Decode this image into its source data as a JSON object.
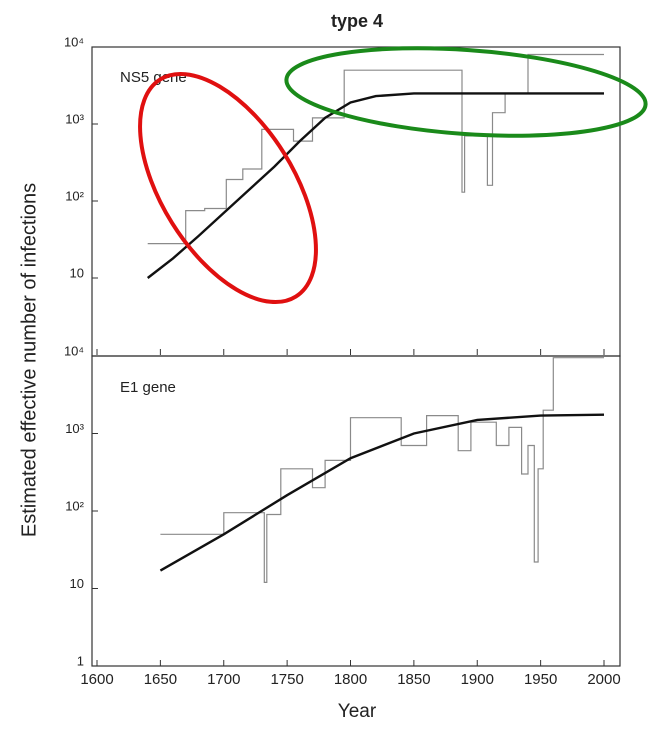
{
  "chart_data": [
    {
      "type": "line",
      "title": "type 4",
      "annotation": "NS5 gene",
      "log_y": true,
      "xlim": [
        1600,
        2000
      ],
      "xticks": [
        1600,
        1650,
        1700,
        1750,
        1800,
        1850,
        1900,
        1950,
        2000
      ],
      "ylim": [
        1,
        10000
      ],
      "yticks": [
        {
          "value": 10000,
          "label": "10⁴"
        },
        {
          "value": 1000,
          "label": "10³"
        },
        {
          "value": 100,
          "label": "10²"
        },
        10
      ],
      "series": [
        {
          "color": "#8a8a8a",
          "x": [
            1640,
            1670,
            1670,
            1685,
            1685,
            1702,
            1702,
            1715,
            1715,
            1730,
            1730,
            1755,
            1755,
            1770,
            1770,
            1795,
            1795,
            1888,
            1888,
            1890,
            1890,
            1908,
            1908,
            1912,
            1912,
            1922,
            1922,
            1940,
            1940,
            2000
          ],
          "values": [
            28,
            28,
            75,
            75,
            80,
            80,
            190,
            190,
            260,
            260,
            850,
            850,
            600,
            600,
            1200,
            1200,
            5000,
            5000,
            130,
            130,
            700,
            700,
            160,
            160,
            1400,
            1400,
            2500,
            2500,
            8000,
            8000
          ]
        },
        {
          "color": "#111111",
          "x": [
            1640,
            1660,
            1680,
            1700,
            1720,
            1740,
            1760,
            1780,
            1800,
            1820,
            1850,
            1900,
            1950,
            2000
          ],
          "values": [
            10,
            18,
            35,
            70,
            140,
            280,
            600,
            1200,
            1900,
            2300,
            2500,
            2500,
            2500,
            2500
          ]
        }
      ]
    },
    {
      "type": "line",
      "annotation": "E1 gene",
      "log_y": true,
      "xlabel": "Year",
      "ylabel": "Estimated effective number of infections",
      "xlim": [
        1600,
        2000
      ],
      "xticks": [
        1600,
        1650,
        1700,
        1750,
        1800,
        1850,
        1900,
        1950,
        2000
      ],
      "ylim": [
        1,
        10000
      ],
      "yticks": [
        {
          "value": 10000,
          "label": "10⁴"
        },
        {
          "value": 1000,
          "label": "10³"
        },
        {
          "value": 100,
          "label": "10²"
        },
        10,
        1
      ],
      "series": [
        {
          "color": "#8a8a8a",
          "x": [
            1650,
            1700,
            1700,
            1732,
            1732,
            1734,
            1734,
            1745,
            1745,
            1770,
            1770,
            1780,
            1780,
            1800,
            1800,
            1840,
            1840,
            1860,
            1860,
            1885,
            1885,
            1895,
            1895,
            1915,
            1915,
            1925,
            1925,
            1935,
            1935,
            1940,
            1940,
            1945,
            1945,
            1948,
            1948,
            1952,
            1952,
            1960,
            1960,
            2000
          ],
          "values": [
            50,
            50,
            95,
            95,
            12,
            12,
            90,
            90,
            350,
            350,
            200,
            200,
            450,
            450,
            1600,
            1600,
            700,
            700,
            1700,
            1700,
            600,
            600,
            1400,
            1400,
            700,
            700,
            1200,
            1200,
            300,
            300,
            700,
            700,
            22,
            22,
            350,
            350,
            2000,
            2000,
            9500,
            9500
          ]
        },
        {
          "color": "#111111",
          "x": [
            1650,
            1700,
            1750,
            1800,
            1850,
            1900,
            1950,
            2000
          ],
          "values": [
            17,
            50,
            160,
            480,
            1000,
            1500,
            1700,
            1750
          ]
        }
      ]
    }
  ]
}
